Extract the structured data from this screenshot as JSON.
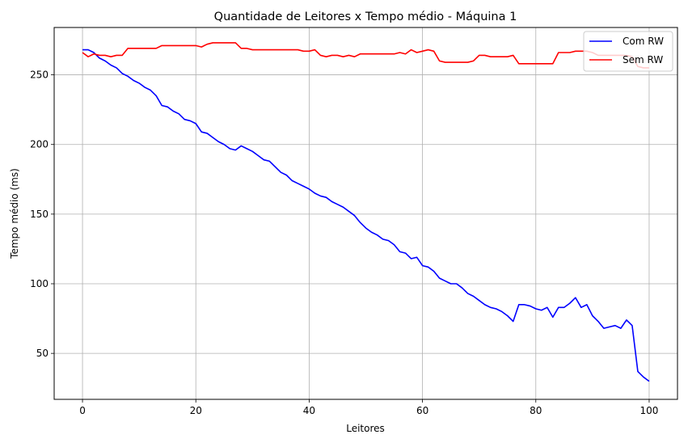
{
  "chart_data": {
    "type": "line",
    "title": "Quantidade de Leitores x Tempo médio - Máquina 1",
    "xlabel": "Leitores",
    "ylabel": "Tempo médio (ms)",
    "xlim": [
      -5,
      105
    ],
    "ylim": [
      17,
      284
    ],
    "xticks": [
      0,
      20,
      40,
      60,
      80,
      100
    ],
    "yticks": [
      50,
      100,
      150,
      200,
      250
    ],
    "grid": true,
    "legend_position": "top-right",
    "series": [
      {
        "name": "Com RW",
        "color": "#0000ff",
        "x": [
          0,
          1,
          2,
          3,
          4,
          5,
          6,
          7,
          8,
          9,
          10,
          11,
          12,
          13,
          14,
          15,
          16,
          17,
          18,
          19,
          20,
          21,
          22,
          23,
          24,
          25,
          26,
          27,
          28,
          29,
          30,
          31,
          32,
          33,
          34,
          35,
          36,
          37,
          38,
          39,
          40,
          41,
          42,
          43,
          44,
          45,
          46,
          47,
          48,
          49,
          50,
          51,
          52,
          53,
          54,
          55,
          56,
          57,
          58,
          59,
          60,
          61,
          62,
          63,
          64,
          65,
          66,
          67,
          68,
          69,
          70,
          71,
          72,
          73,
          74,
          75,
          76,
          77,
          78,
          79,
          80,
          81,
          82,
          83,
          84,
          85,
          86,
          87,
          88,
          89,
          90,
          91,
          92,
          93,
          94,
          95,
          96,
          97,
          98,
          99,
          100
        ],
        "y": [
          268,
          268,
          266,
          262,
          260,
          257,
          255,
          251,
          249,
          246,
          244,
          241,
          239,
          235,
          228,
          227,
          224,
          222,
          218,
          217,
          215,
          209,
          208,
          205,
          202,
          200,
          197,
          196,
          199,
          197,
          195,
          192,
          189,
          188,
          184,
          180,
          178,
          174,
          172,
          170,
          168,
          165,
          163,
          162,
          159,
          157,
          155,
          152,
          149,
          144,
          140,
          137,
          135,
          132,
          131,
          128,
          123,
          122,
          118,
          119,
          113,
          112,
          109,
          104,
          102,
          100,
          100,
          97,
          93,
          91,
          88,
          85,
          83,
          82,
          80,
          77,
          73,
          85,
          85,
          84,
          82,
          81,
          83,
          76,
          83,
          83,
          86,
          90,
          83,
          85,
          77,
          73,
          68,
          69,
          70,
          68,
          74,
          70,
          37,
          33,
          30
        ]
      },
      {
        "name": "Sem RW",
        "color": "#ff0000",
        "x": [
          0,
          1,
          2,
          3,
          4,
          5,
          6,
          7,
          8,
          9,
          10,
          11,
          12,
          13,
          14,
          15,
          16,
          17,
          18,
          19,
          20,
          21,
          22,
          23,
          24,
          25,
          26,
          27,
          28,
          29,
          30,
          31,
          32,
          33,
          34,
          35,
          36,
          37,
          38,
          39,
          40,
          41,
          42,
          43,
          44,
          45,
          46,
          47,
          48,
          49,
          50,
          51,
          52,
          53,
          54,
          55,
          56,
          57,
          58,
          59,
          60,
          61,
          62,
          63,
          64,
          65,
          66,
          67,
          68,
          69,
          70,
          71,
          72,
          73,
          74,
          75,
          76,
          77,
          78,
          79,
          80,
          81,
          82,
          83,
          84,
          85,
          86,
          87,
          88,
          89,
          90,
          91,
          92,
          93,
          94,
          95,
          96,
          97,
          98,
          99,
          100
        ],
        "y": [
          266,
          263,
          265,
          264,
          264,
          263,
          264,
          264,
          269,
          269,
          269,
          269,
          269,
          269,
          271,
          271,
          271,
          271,
          271,
          271,
          271,
          270,
          272,
          273,
          273,
          273,
          273,
          273,
          269,
          269,
          268,
          268,
          268,
          268,
          268,
          268,
          268,
          268,
          268,
          267,
          267,
          268,
          264,
          263,
          264,
          264,
          263,
          264,
          263,
          265,
          265,
          265,
          265,
          265,
          265,
          265,
          266,
          265,
          268,
          266,
          267,
          268,
          267,
          260,
          259,
          259,
          259,
          259,
          259,
          260,
          264,
          264,
          263,
          263,
          263,
          263,
          264,
          258,
          258,
          258,
          258,
          258,
          258,
          258,
          266,
          266,
          266,
          267,
          267,
          267,
          266,
          264,
          264,
          264,
          264,
          264,
          264,
          263,
          256,
          255,
          255
        ]
      }
    ]
  }
}
